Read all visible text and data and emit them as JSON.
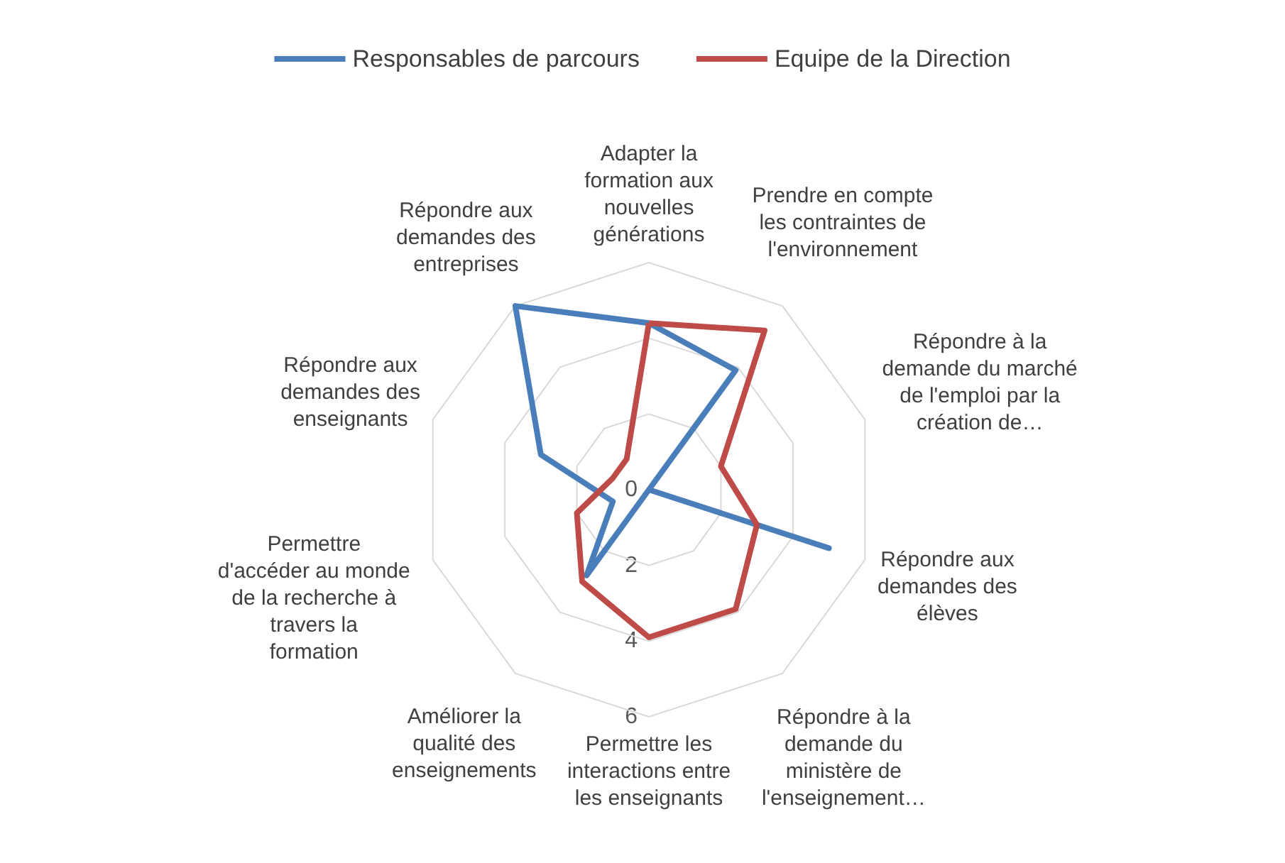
{
  "chart_data": {
    "type": "radar",
    "categories": [
      "Adapter la formation aux nouvelles générations",
      "Prendre en compte les contraintes de l'environnement",
      "Répondre à la demande du marché de l'emploi par la création de…",
      "Répondre aux demandes des élèves",
      "Répondre à la demande du ministère de l'enseignement…",
      "Permettre les interactions entre les enseignants",
      "Améliorer la qualité des enseignements",
      "Permettre d'accéder au monde de la recherche à travers la formation",
      "Répondre aux demandes des enseignants",
      "Répondre aux demandes des entreprises"
    ],
    "series": [
      {
        "name": "Responsables de parcours",
        "color": "#4a7ebb",
        "values": [
          4.4,
          3.9,
          0,
          5,
          0,
          0,
          2.8,
          1,
          3,
          6
        ]
      },
      {
        "name": "Equipe de la Direction",
        "color": "#be4b48",
        "values": [
          4.4,
          5.2,
          2,
          3,
          3.9,
          3.9,
          3,
          2,
          1,
          1
        ]
      }
    ],
    "ylim": [
      0,
      6
    ],
    "yticks": [
      0,
      2,
      4,
      6
    ],
    "grid": true,
    "legend": "top",
    "marker": "none"
  }
}
